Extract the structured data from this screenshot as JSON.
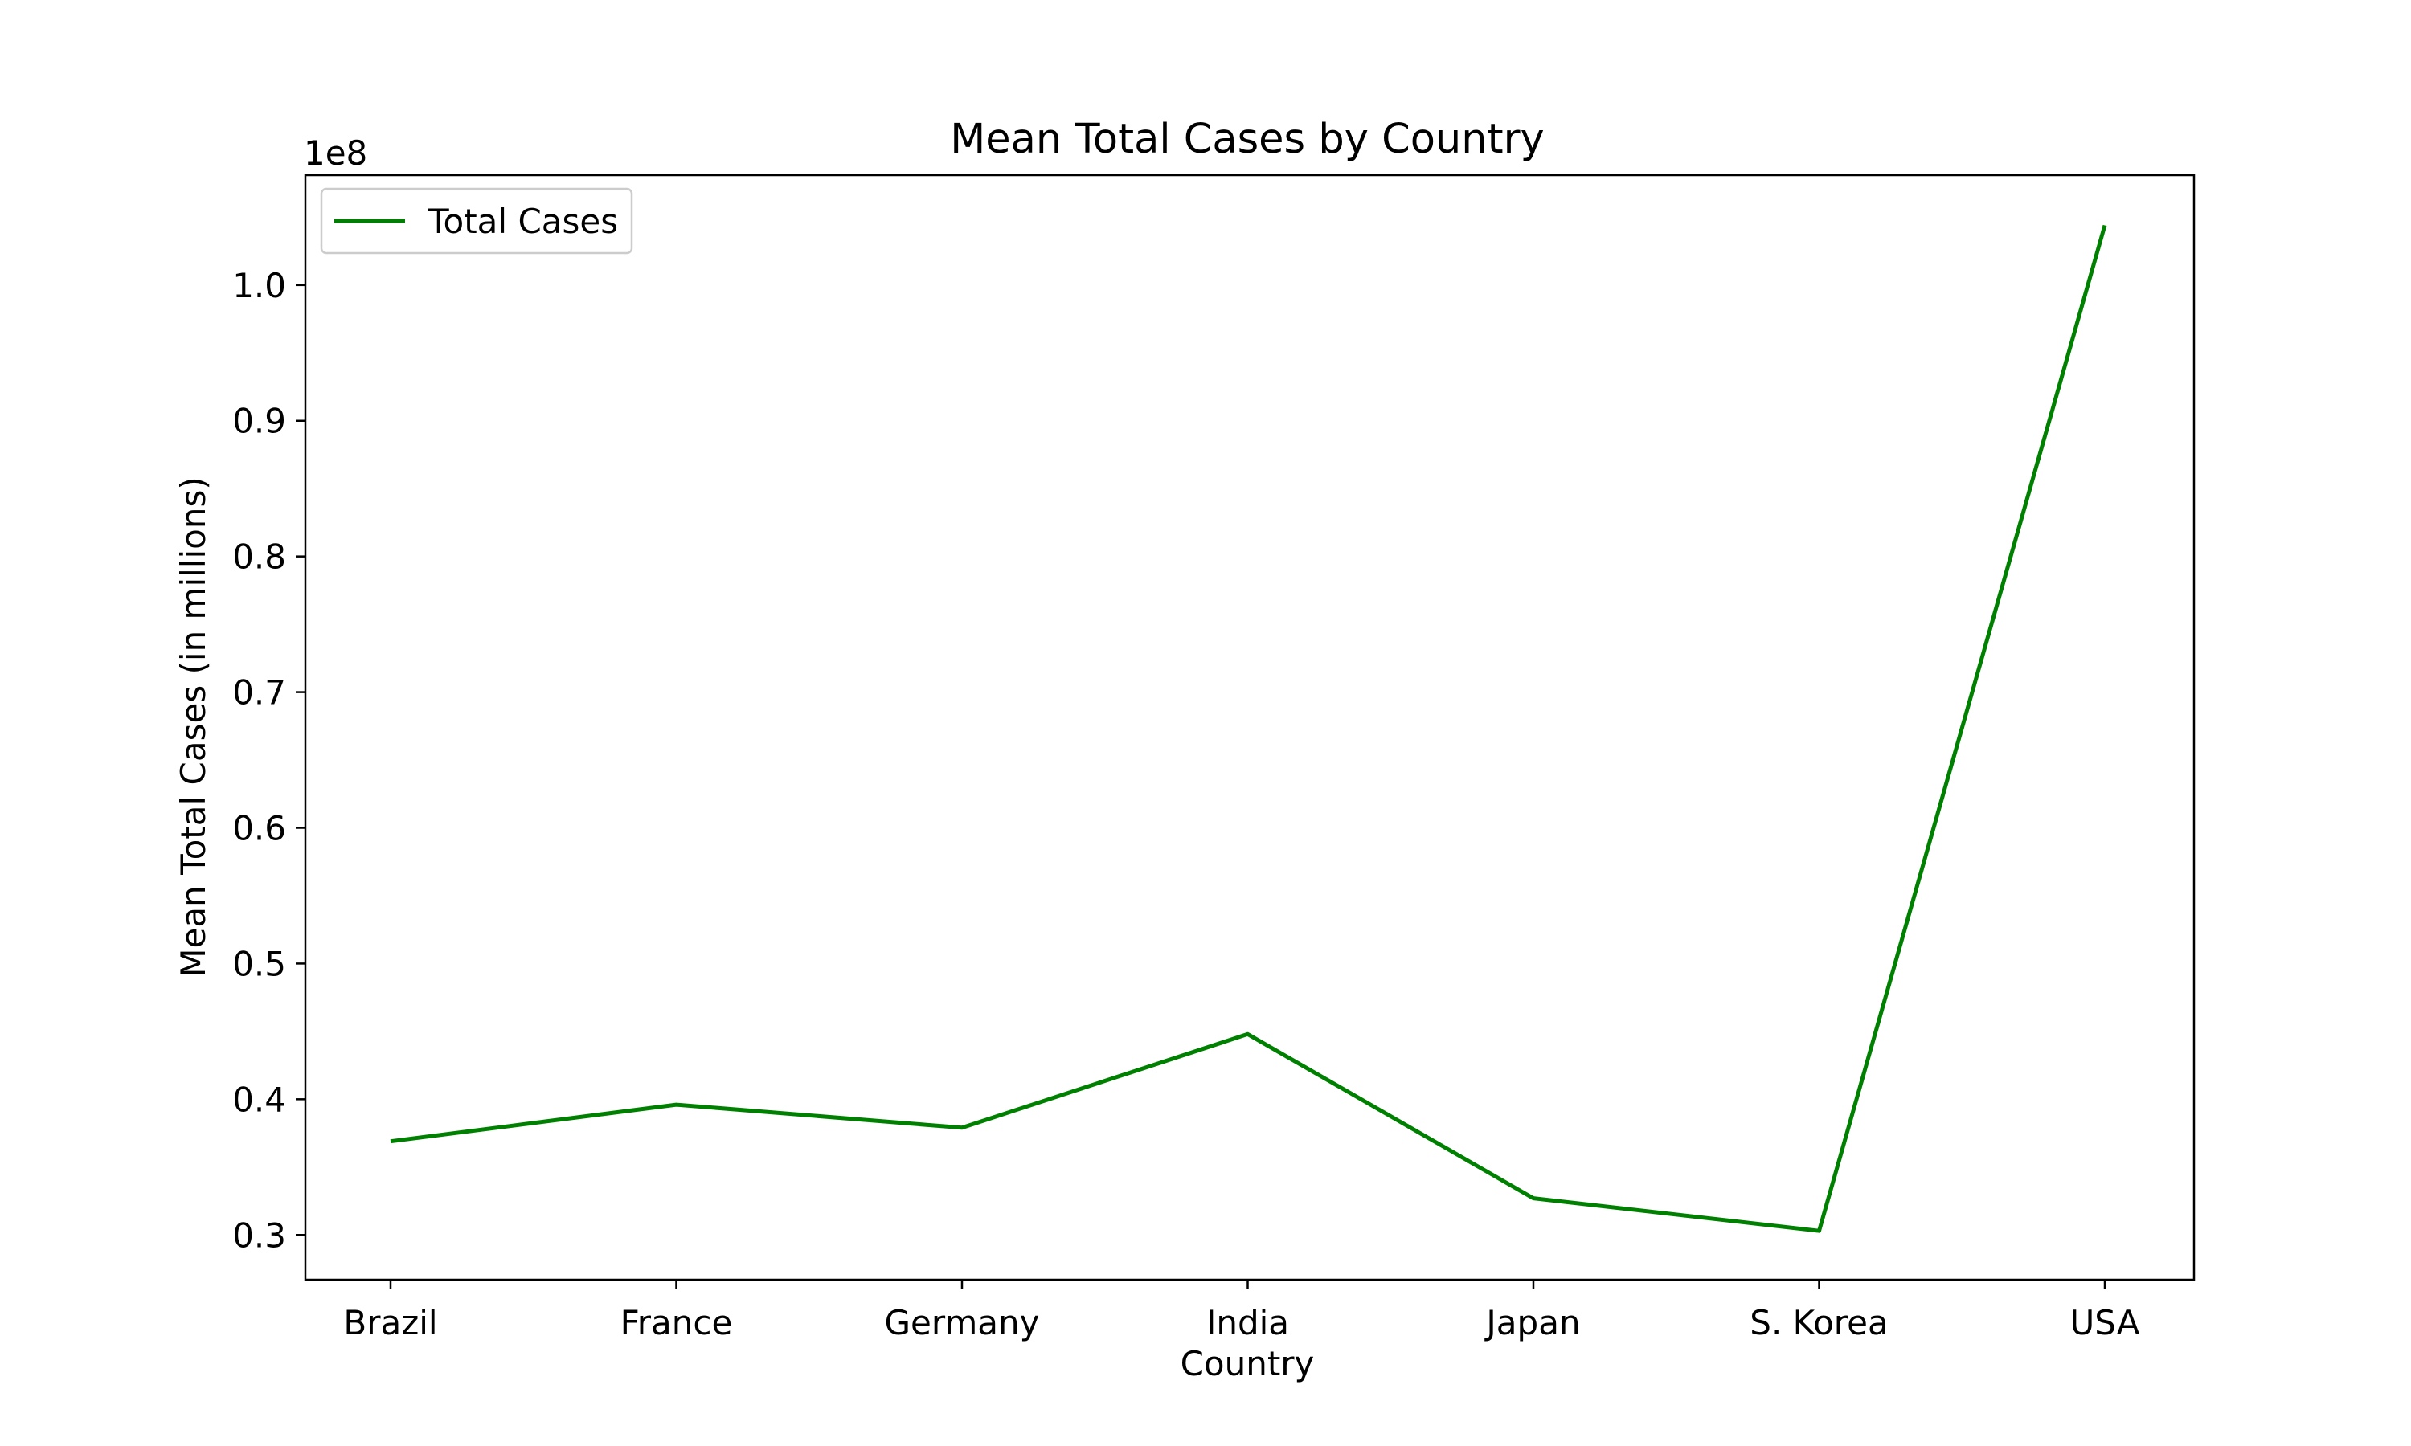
{
  "chart_data": {
    "type": "line",
    "title": "Mean Total Cases by Country",
    "xlabel": "Country",
    "ylabel": "Mean Total Cases (in millions)",
    "offset_label": "1e8",
    "categories": [
      "Brazil",
      "France",
      "Germany",
      "India",
      "Japan",
      "S. Korea",
      "USA"
    ],
    "series": [
      {
        "name": "Total Cases",
        "color": "#008000",
        "values": [
          36900000,
          39600000,
          37900000,
          44800000,
          32700000,
          30300000,
          104400000
        ]
      }
    ],
    "ylim": [
      26700000,
      108100000
    ],
    "yticks": [
      30000000,
      40000000,
      50000000,
      60000000,
      70000000,
      80000000,
      90000000,
      100000000
    ],
    "ytick_labels": [
      "0.3",
      "0.4",
      "0.5",
      "0.6",
      "0.7",
      "0.8",
      "0.9",
      "1.0"
    ],
    "grid": false,
    "legend_position": "top-left"
  }
}
